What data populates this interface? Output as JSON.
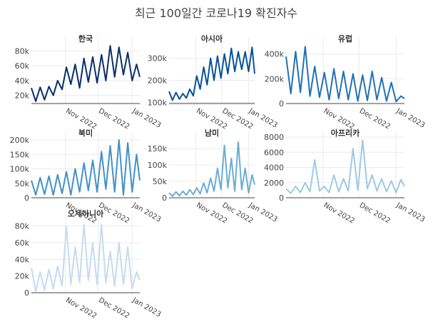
{
  "chart_data": {
    "type": "line",
    "title": "최근 100일간 코로나19 확진자수",
    "layout": "facets-3-columns",
    "grid": true,
    "legend": "none",
    "x_ticks": [
      "Nov 2022",
      "Dec 2022",
      "Jan 2023"
    ],
    "x_range": [
      "2022-10-01",
      "2023-01-08"
    ],
    "panels": [
      {
        "name": "한국",
        "color": "#08306b",
        "y_ticks": [
          20000,
          40000,
          60000,
          80000
        ],
        "y_tick_labels": [
          "20k",
          "40k",
          "60k",
          "80k"
        ],
        "y_range": [
          9000,
          91000
        ],
        "x": [
          "2022-10-01",
          "2022-10-05",
          "2022-10-09",
          "2022-10-13",
          "2022-10-17",
          "2022-10-21",
          "2022-10-25",
          "2022-10-29",
          "2022-11-02",
          "2022-11-06",
          "2022-11-10",
          "2022-11-14",
          "2022-11-18",
          "2022-11-22",
          "2022-11-26",
          "2022-11-30",
          "2022-12-04",
          "2022-12-08",
          "2022-12-12",
          "2022-12-16",
          "2022-12-20",
          "2022-12-24",
          "2022-12-28",
          "2023-01-01",
          "2023-01-05",
          "2023-01-08"
        ],
        "y": [
          30000,
          12000,
          31000,
          14000,
          32000,
          20000,
          40000,
          28000,
          58000,
          35000,
          62000,
          30000,
          70000,
          38000,
          72000,
          37000,
          75000,
          40000,
          87000,
          45000,
          85000,
          48000,
          78000,
          40000,
          62000,
          45000
        ]
      },
      {
        "name": "아시아",
        "color": "#08519c",
        "y_ticks": [
          100000,
          200000,
          300000
        ],
        "y_tick_labels": [
          "100k",
          "200k",
          "300k"
        ],
        "y_range": [
          95000,
          370000
        ],
        "x": [
          "2022-10-01",
          "2022-10-05",
          "2022-10-09",
          "2022-10-13",
          "2022-10-17",
          "2022-10-21",
          "2022-10-25",
          "2022-10-29",
          "2022-11-02",
          "2022-11-06",
          "2022-11-10",
          "2022-11-14",
          "2022-11-18",
          "2022-11-22",
          "2022-11-26",
          "2022-11-30",
          "2022-12-04",
          "2022-12-08",
          "2022-12-12",
          "2022-12-16",
          "2022-12-20",
          "2022-12-24",
          "2022-12-28",
          "2023-01-01",
          "2023-01-05",
          "2023-01-08"
        ],
        "y": [
          150000,
          110000,
          145000,
          115000,
          140000,
          120000,
          160000,
          130000,
          220000,
          160000,
          260000,
          180000,
          300000,
          200000,
          310000,
          210000,
          320000,
          230000,
          345000,
          240000,
          330000,
          250000,
          330000,
          240000,
          350000,
          230000
        ]
      },
      {
        "name": "유럽",
        "color": "#2171b5",
        "y_ticks": [
          0,
          200000,
          400000
        ],
        "y_tick_labels": [
          "0",
          "200k",
          "400k"
        ],
        "y_range": [
          0,
          490000
        ],
        "x": [
          "2022-10-01",
          "2022-10-05",
          "2022-10-09",
          "2022-10-13",
          "2022-10-17",
          "2022-10-21",
          "2022-10-25",
          "2022-10-29",
          "2022-11-02",
          "2022-11-06",
          "2022-11-10",
          "2022-11-14",
          "2022-11-18",
          "2022-11-22",
          "2022-11-26",
          "2022-11-30",
          "2022-12-04",
          "2022-12-08",
          "2022-12-12",
          "2022-12-16",
          "2022-12-20",
          "2022-12-24",
          "2022-12-28",
          "2023-01-01",
          "2023-01-05",
          "2023-01-08"
        ],
        "y": [
          380000,
          80000,
          420000,
          90000,
          460000,
          60000,
          300000,
          50000,
          250000,
          30000,
          280000,
          40000,
          260000,
          30000,
          240000,
          20000,
          230000,
          25000,
          260000,
          30000,
          210000,
          20000,
          170000,
          15000,
          60000,
          40000
        ]
      },
      {
        "name": "북미",
        "color": "#4292c6",
        "y_ticks": [
          0,
          50000,
          100000,
          150000,
          200000
        ],
        "y_tick_labels": [
          "0",
          "50k",
          "100k",
          "150k",
          "200k"
        ],
        "y_range": [
          0,
          210000
        ],
        "x": [
          "2022-10-01",
          "2022-10-05",
          "2022-10-09",
          "2022-10-13",
          "2022-10-17",
          "2022-10-21",
          "2022-10-25",
          "2022-10-29",
          "2022-11-02",
          "2022-11-06",
          "2022-11-10",
          "2022-11-14",
          "2022-11-18",
          "2022-11-22",
          "2022-11-26",
          "2022-11-30",
          "2022-12-04",
          "2022-12-08",
          "2022-12-12",
          "2022-12-16",
          "2022-12-20",
          "2022-12-24",
          "2022-12-28",
          "2023-01-01",
          "2023-01-05",
          "2023-01-08"
        ],
        "y": [
          60000,
          10000,
          70000,
          12000,
          75000,
          10000,
          80000,
          15000,
          90000,
          10000,
          100000,
          20000,
          120000,
          25000,
          130000,
          20000,
          160000,
          30000,
          180000,
          20000,
          200000,
          10000,
          190000,
          20000,
          150000,
          60000
        ]
      },
      {
        "name": "남미",
        "color": "#6baed6",
        "y_ticks": [
          0,
          50000,
          100000,
          150000
        ],
        "y_tick_labels": [
          "0",
          "50k",
          "100k",
          "150k"
        ],
        "y_range": [
          0,
          185000
        ],
        "x": [
          "2022-10-01",
          "2022-10-05",
          "2022-10-09",
          "2022-10-13",
          "2022-10-17",
          "2022-10-21",
          "2022-10-25",
          "2022-10-29",
          "2022-11-02",
          "2022-11-06",
          "2022-11-10",
          "2022-11-14",
          "2022-11-18",
          "2022-11-22",
          "2022-11-26",
          "2022-11-30",
          "2022-12-04",
          "2022-12-08",
          "2022-12-12",
          "2022-12-16",
          "2022-12-20",
          "2022-12-24",
          "2022-12-28",
          "2023-01-01",
          "2023-01-05",
          "2023-01-08"
        ],
        "y": [
          15000,
          5000,
          18000,
          6000,
          20000,
          8000,
          25000,
          10000,
          30000,
          12000,
          45000,
          15000,
          60000,
          20000,
          90000,
          25000,
          160000,
          30000,
          120000,
          20000,
          170000,
          25000,
          90000,
          15000,
          70000,
          40000
        ]
      },
      {
        "name": "아프리카",
        "color": "#9ecae1",
        "y_ticks": [
          0,
          2000,
          4000,
          6000,
          8000
        ],
        "y_tick_labels": [
          "0",
          "2000",
          "4000",
          "6000",
          "8000"
        ],
        "y_range": [
          0,
          8000
        ],
        "x": [
          "2022-10-01",
          "2022-10-05",
          "2022-10-09",
          "2022-10-13",
          "2022-10-17",
          "2022-10-21",
          "2022-10-25",
          "2022-10-29",
          "2022-11-02",
          "2022-11-06",
          "2022-11-10",
          "2022-11-14",
          "2022-11-18",
          "2022-11-22",
          "2022-11-26",
          "2022-11-30",
          "2022-12-04",
          "2022-12-08",
          "2022-12-12",
          "2022-12-16",
          "2022-12-20",
          "2022-12-24",
          "2022-12-28",
          "2023-01-01",
          "2023-01-05",
          "2023-01-08"
        ],
        "y": [
          1200,
          600,
          1500,
          700,
          2000,
          800,
          5000,
          900,
          1500,
          700,
          3000,
          800,
          2500,
          900,
          6500,
          1000,
          7600,
          1200,
          3000,
          900,
          2500,
          800,
          2200,
          700,
          2400,
          1500
        ]
      },
      {
        "name": "오세아니아",
        "color": "#c6dbef",
        "y_ticks": [
          0,
          20000,
          40000,
          60000,
          80000
        ],
        "y_tick_labels": [
          "0",
          "20k",
          "40k",
          "60k",
          "80k"
        ],
        "y_range": [
          0,
          90000
        ],
        "x": [
          "2022-10-01",
          "2022-10-05",
          "2022-10-09",
          "2022-10-13",
          "2022-10-17",
          "2022-10-21",
          "2022-10-25",
          "2022-10-29",
          "2022-11-02",
          "2022-11-06",
          "2022-11-10",
          "2022-11-14",
          "2022-11-18",
          "2022-11-22",
          "2022-11-26",
          "2022-11-30",
          "2022-12-04",
          "2022-12-08",
          "2022-12-12",
          "2022-12-16",
          "2022-12-20",
          "2022-12-24",
          "2022-12-28",
          "2023-01-01",
          "2023-01-05",
          "2023-01-08"
        ],
        "y": [
          30000,
          2000,
          25000,
          3000,
          28000,
          5000,
          32000,
          8000,
          80000,
          10000,
          55000,
          12000,
          82000,
          15000,
          60000,
          10000,
          82000,
          12000,
          50000,
          8000,
          60000,
          10000,
          55000,
          5000,
          25000,
          15000
        ]
      }
    ]
  }
}
